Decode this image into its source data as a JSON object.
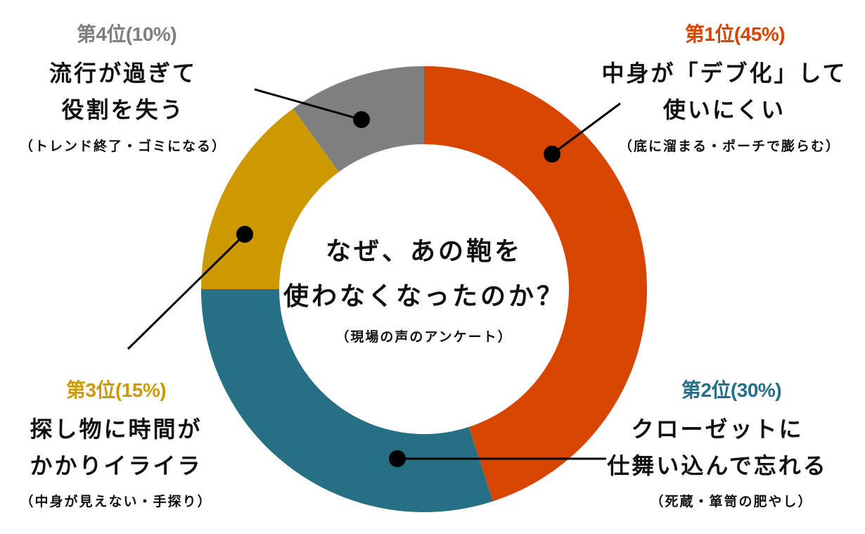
{
  "chart_data": {
    "type": "pie",
    "variant": "donut",
    "title": "なぜ、あの鞄を使わなくなったのか？",
    "subtitle": "（現場の声のアンケート）",
    "categories": [
      "中身が「デブ化」して使いにくい",
      "クローゼットに仕舞い込んで忘れる",
      "探し物に時間がかかりイライラ",
      "流行が過ぎて役割を失う"
    ],
    "values": [
      45,
      30,
      15,
      10
    ],
    "ranks": [
      "第1位",
      "第2位",
      "第3位",
      "第4位"
    ],
    "colors": [
      "#D84500",
      "#267085",
      "#CC9A00",
      "#7F7F7F"
    ],
    "start_angle_deg": 0,
    "direction": "clockwise",
    "legend_position": "annotations around donut"
  },
  "center": {
    "title_line1": "なぜ、あの鞄を",
    "title_line2": "使わなくなったのか？",
    "subtitle": "（現場の声のアンケート）"
  },
  "labels": [
    {
      "rank": "第1位(45%)",
      "line1": "中身が「デブ化」して",
      "line2": "使いにくい",
      "note": "（底に溜まる・ポーチで膨らむ）",
      "color": "#D84500"
    },
    {
      "rank": "第2位(30%)",
      "line1": "クローゼットに",
      "line2": "仕舞い込んで忘れる",
      "note": "（死蔵・箪笥の肥やし）",
      "color": "#267085"
    },
    {
      "rank": "第3位(15%)",
      "line1": "探し物に時間が",
      "line2": "かかりイライラ",
      "note": "（中身が見えない・手探り）",
      "color": "#CC9A00"
    },
    {
      "rank": "第4位(10%)",
      "line1": "流行が過ぎて",
      "line2": "役割を失う",
      "note": "（トレンド終了・ゴミになる）",
      "color": "#7F7F7F"
    }
  ]
}
